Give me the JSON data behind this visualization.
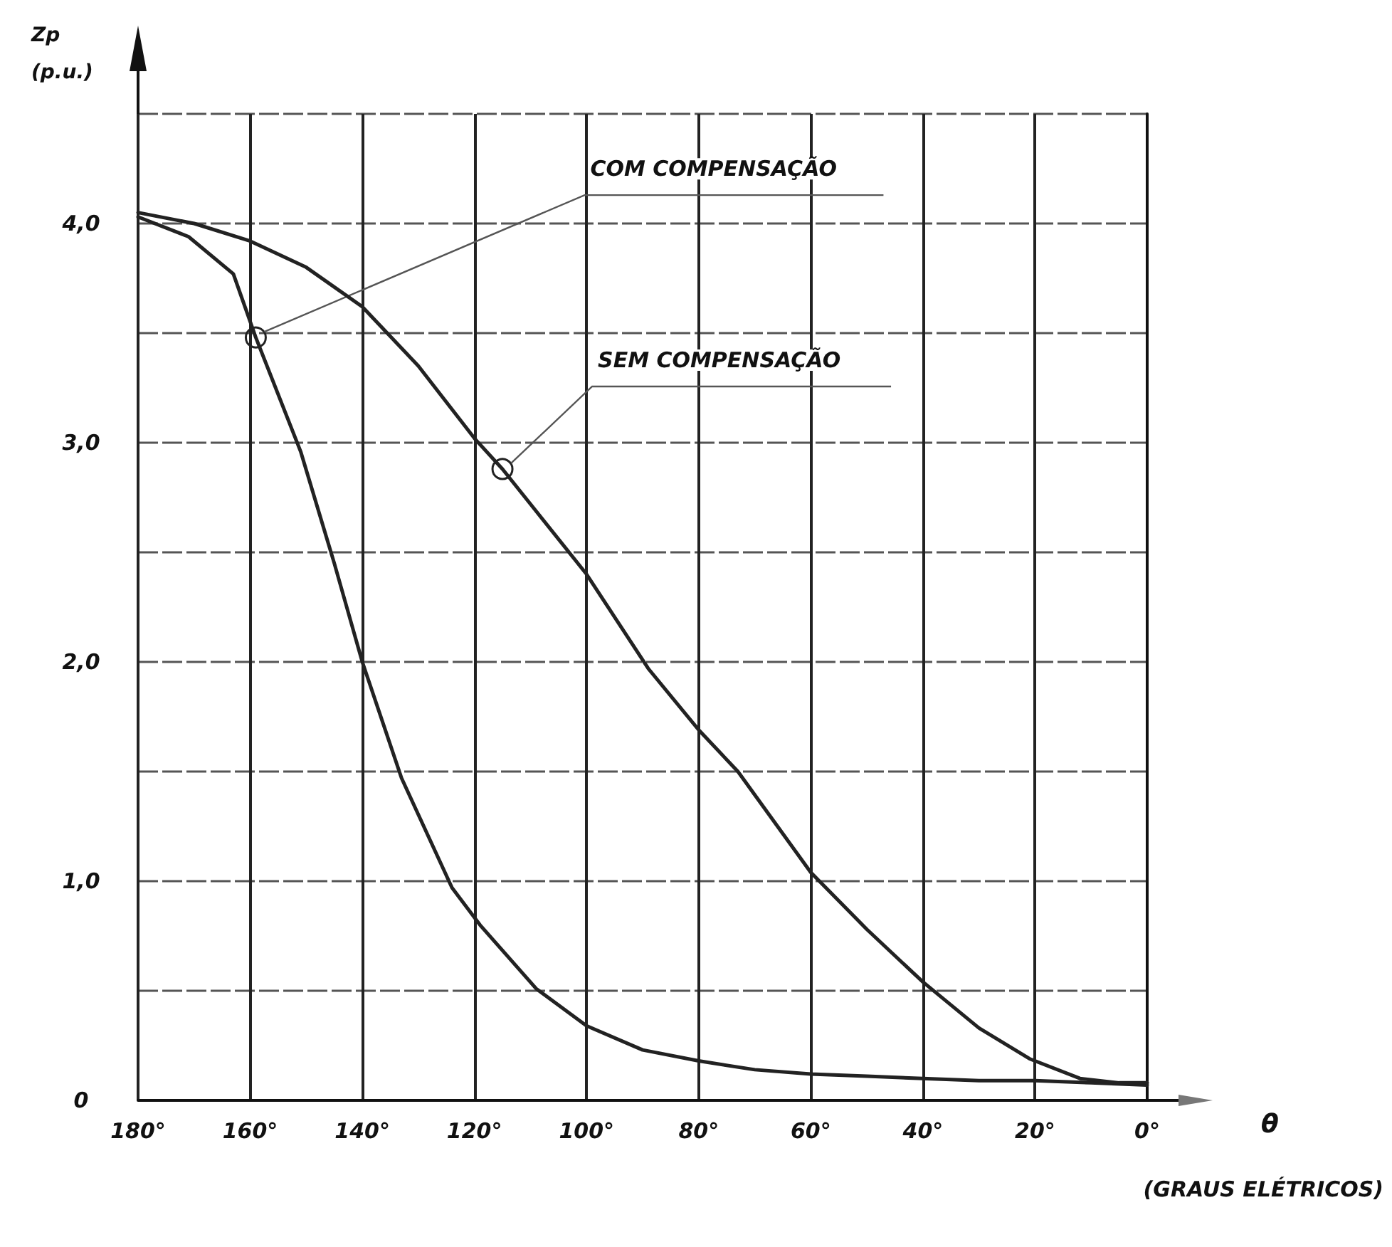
{
  "chart_data": {
    "type": "line",
    "xlabel": "θ (GRAUS ELÉTRICOS)",
    "ylabel": "Zp (p.u.)",
    "xlim": [
      180,
      0
    ],
    "xticks": [
      {
        "value": 180,
        "label": "180°"
      },
      {
        "value": 160,
        "label": "160°"
      },
      {
        "value": 140,
        "label": "140°"
      },
      {
        "value": 120,
        "label": "120°"
      },
      {
        "value": 100,
        "label": "100°"
      },
      {
        "value": 80,
        "label": "80°"
      },
      {
        "value": 60,
        "label": "60°"
      },
      {
        "value": 40,
        "label": "40°"
      },
      {
        "value": 20,
        "label": "20°"
      },
      {
        "value": 0,
        "label": "0°"
      }
    ],
    "ylim": [
      0,
      4.5
    ],
    "yticks": [
      0,
      {
        "value": 0.5,
        "label": null
      },
      {
        "value": 1,
        "label": "1,0"
      },
      {
        "value": 1.5,
        "label": null
      },
      {
        "value": 2,
        "label": "2,0"
      },
      {
        "value": 2.5,
        "label": null
      },
      {
        "value": 3,
        "label": "3,0"
      },
      {
        "value": 3.5,
        "label": null
      },
      {
        "value": 4,
        "label": "4,0"
      },
      {
        "value": 4.5,
        "label": null
      }
    ],
    "grid": true,
    "legend": false,
    "marker": "none",
    "line_style": "solid",
    "series": [
      {
        "color": "#222222",
        "x": [
          180,
          171,
          163,
          159,
          151,
          145,
          140,
          133,
          124,
          119,
          109,
          100,
          90,
          80,
          70,
          60,
          50,
          40,
          30,
          20,
          10,
          0
        ],
        "values": [
          4.03,
          3.94,
          3.77,
          3.48,
          2.96,
          2.45,
          2.0,
          1.47,
          0.97,
          0.8,
          0.51,
          0.34,
          0.23,
          0.18,
          0.14,
          0.12,
          0.11,
          0.1,
          0.09,
          0.09,
          0.08,
          0.07
        ]
      },
      {
        "color": "#222222",
        "x": [
          180,
          170,
          160,
          150,
          140,
          130,
          120,
          115,
          110,
          100,
          89,
          80,
          73,
          60,
          50,
          40,
          30,
          21,
          12,
          5,
          0
        ],
        "values": [
          4.05,
          4.0,
          3.92,
          3.8,
          3.62,
          3.35,
          3.02,
          2.88,
          2.72,
          2.4,
          1.97,
          1.69,
          1.5,
          1.04,
          0.78,
          0.54,
          0.33,
          0.19,
          0.1,
          0.08,
          0.08
        ]
      }
    ],
    "annotations": [
      {
        "text": "COM COMPENSAÇÃO",
        "x": 159,
        "y": 3.48
      },
      {
        "text": "SEM COMPENSAÇÃO",
        "x": 115,
        "y": 2.88
      }
    ]
  }
}
